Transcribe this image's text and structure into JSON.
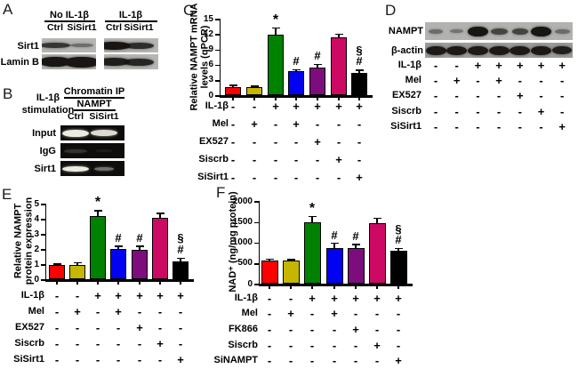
{
  "figure": {
    "panel_labels": {
      "A": "A",
      "B": "B",
      "C": "C",
      "D": "D",
      "E": "E",
      "F": "F"
    }
  },
  "panel_a": {
    "groups": [
      {
        "title": "No IL-1β",
        "lanes": [
          "Ctrl",
          "SiSirt1"
        ]
      },
      {
        "title": "IL-1β",
        "lanes": [
          "Ctrl",
          "SiSirt1"
        ]
      }
    ],
    "row_labels": [
      "Sirt1",
      "Lamin B"
    ],
    "band_intensities": {
      "sirt1": [
        [
          0.8,
          0.45
        ],
        [
          1.0,
          0.85
        ]
      ],
      "lamin_b": [
        [
          1.0,
          1.0
        ],
        [
          0.95,
          0.9
        ]
      ]
    }
  },
  "panel_b": {
    "stimulation_label": "IL-1β\nstimulation",
    "header": "Chromatin IP",
    "subheader": "NAMPT",
    "lanes": [
      "Ctrl",
      "SiSirt1"
    ],
    "row_labels": [
      "Input",
      "IgG",
      "Sirt1"
    ],
    "band_intensities": {
      "Input": [
        0.95,
        0.88
      ],
      "IgG": [
        0.16,
        0.07
      ],
      "Sirt1": [
        0.95,
        0.42
      ]
    }
  },
  "panel_d": {
    "row_labels": [
      "NAMPT",
      "β-actin"
    ],
    "band_intensities": {
      "NAMPT": [
        0.45,
        0.4,
        1.0,
        0.7,
        0.7,
        1.0,
        0.45
      ],
      "beta_actin": [
        0.97,
        0.97,
        0.97,
        0.97,
        0.97,
        0.97,
        0.93
      ]
    },
    "conditions": {
      "rows": [
        "IL-1β",
        "Mel",
        "EX527",
        "Siscrb",
        "SiSirt1"
      ],
      "signs": [
        [
          "-",
          "-",
          "+",
          "+",
          "+",
          "+",
          "+"
        ],
        [
          "-",
          "+",
          "-",
          "+",
          "-",
          "-",
          "-"
        ],
        [
          "-",
          "-",
          "-",
          "-",
          "+",
          "-",
          "-"
        ],
        [
          "-",
          "-",
          "-",
          "-",
          "-",
          "+",
          "-"
        ],
        [
          "-",
          "-",
          "-",
          "-",
          "-",
          "-",
          "+"
        ]
      ]
    }
  },
  "chart_data": [
    {
      "id": "C",
      "type": "bar",
      "ylabel": "Relative NAMPT mRNA\nlevels (qPCR)",
      "ylim": [
        0,
        15
      ],
      "yticks": [
        0,
        3,
        6,
        9,
        12,
        15
      ],
      "values": [
        1.8,
        1.8,
        12.0,
        4.8,
        5.5,
        11.5,
        4.6
      ],
      "errors": [
        0.25,
        0.15,
        1.3,
        0.35,
        0.7,
        0.6,
        0.5
      ],
      "colors": [
        "#fe0000",
        "#c6b600",
        "#008100",
        "#0202f2",
        "#7d0c7d",
        "#cc0a64",
        "#000000"
      ],
      "sig": [
        "",
        "",
        "*",
        "#",
        "#",
        "",
        "§\n#"
      ],
      "conditions": {
        "rows": [
          "IL-1β",
          "Mel",
          "EX527",
          "Siscrb",
          "SiSirt1"
        ],
        "signs": [
          [
            "-",
            "-",
            "+",
            "+",
            "+",
            "+",
            "+"
          ],
          [
            "-",
            "+",
            "-",
            "+",
            "-",
            "-",
            "-"
          ],
          [
            "-",
            "-",
            "-",
            "-",
            "+",
            "-",
            "-"
          ],
          [
            "-",
            "-",
            "-",
            "-",
            "-",
            "+",
            "-"
          ],
          [
            "-",
            "-",
            "-",
            "-",
            "-",
            "-",
            "+"
          ]
        ]
      }
    },
    {
      "id": "E",
      "type": "bar",
      "ylabel": "Relative NAMPT\nprotein expression",
      "ylim": [
        0,
        5
      ],
      "yticks": [
        0,
        1,
        2,
        3,
        4,
        5
      ],
      "values": [
        1.0,
        1.0,
        4.25,
        2.05,
        2.0,
        4.1,
        1.25
      ],
      "errors": [
        0.07,
        0.15,
        0.35,
        0.2,
        0.25,
        0.3,
        0.2
      ],
      "colors": [
        "#fe0000",
        "#c6b600",
        "#008100",
        "#0202f2",
        "#7d0c7d",
        "#cc0a64",
        "#000000"
      ],
      "sig": [
        "",
        "",
        "*",
        "#",
        "#",
        "",
        "§\n#"
      ],
      "conditions": {
        "rows": [
          "IL-1β",
          "Mel",
          "EX527",
          "Siscrb",
          "SiSirt1"
        ],
        "signs": [
          [
            "-",
            "-",
            "+",
            "+",
            "+",
            "+",
            "+"
          ],
          [
            "-",
            "+",
            "-",
            "+",
            "-",
            "-",
            "-"
          ],
          [
            "-",
            "-",
            "-",
            "-",
            "+",
            "-",
            "-"
          ],
          [
            "-",
            "-",
            "-",
            "-",
            "-",
            "+",
            "-"
          ],
          [
            "-",
            "-",
            "-",
            "-",
            "-",
            "-",
            "+"
          ]
        ]
      }
    },
    {
      "id": "F",
      "type": "bar",
      "ylabel": "NAD⁺ (ng/mg protein)",
      "ylim": [
        0,
        2000
      ],
      "yticks": [
        0,
        500,
        1000,
        1500,
        2000
      ],
      "values": [
        580,
        580,
        1500,
        890,
        880,
        1480,
        810
      ],
      "errors": [
        30,
        25,
        140,
        110,
        90,
        120,
        60
      ],
      "colors": [
        "#fe0000",
        "#c6b600",
        "#008100",
        "#0202f2",
        "#7d0c7d",
        "#cc0a64",
        "#000000"
      ],
      "sig": [
        "",
        "",
        "*",
        "#",
        "#",
        "",
        "§\n#"
      ],
      "conditions": {
        "rows": [
          "IL-1β",
          "Mel",
          "FK866",
          "Siscrb",
          "SiNAMPT"
        ],
        "signs": [
          [
            "-",
            "-",
            "+",
            "+",
            "+",
            "+",
            "+"
          ],
          [
            "-",
            "+",
            "-",
            "+",
            "-",
            "-",
            "-"
          ],
          [
            "-",
            "-",
            "-",
            "-",
            "+",
            "-",
            "-"
          ],
          [
            "-",
            "-",
            "-",
            "-",
            "-",
            "+",
            "-"
          ],
          [
            "-",
            "-",
            "-",
            "-",
            "-",
            "-",
            "+"
          ]
        ]
      }
    }
  ]
}
